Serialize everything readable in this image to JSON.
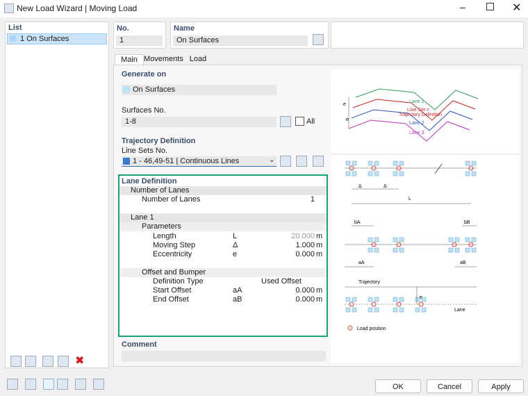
{
  "window": {
    "title": "New Load Wizard | Moving Load"
  },
  "list": {
    "header": "List",
    "items": [
      "1 On Surfaces"
    ]
  },
  "header": {
    "no_label": "No.",
    "no": "1",
    "name_label": "Name",
    "name": "On Surfaces"
  },
  "tabs": [
    "Main",
    "Movements",
    "Load Cases"
  ],
  "generate_on": {
    "title": "Generate on",
    "value": "On Surfaces",
    "surfaces_label": "Surfaces No.",
    "surfaces": "1-8",
    "all": "All"
  },
  "trajectory": {
    "title": "Trajectory Definition",
    "line_sets_label": "Line Sets No.",
    "line_sets": "1 - 46,49-51 | Continuous Lines"
  },
  "lane_definition": {
    "title": "Lane Definition",
    "rows": [
      {
        "name": "Number of Lanes"
      },
      {
        "name": "Number of Lanes",
        "value": "1"
      },
      {
        "name": "Lane 1"
      },
      {
        "name": "Parameters"
      },
      {
        "name": "Length",
        "symbol": "L",
        "value": "20.000",
        "unit": "m"
      },
      {
        "name": "Moving Step",
        "symbol": "Δ",
        "value": "1.000",
        "unit": "m"
      },
      {
        "name": "Eccentricity",
        "symbol": "e",
        "value": "0.000",
        "unit": "m"
      },
      {
        "name": "Offset and Bumper"
      },
      {
        "name": "Definition Type",
        "value": "Used Offset"
      },
      {
        "name": "Start Offset",
        "symbol": "aA",
        "value": "0.000",
        "unit": "m"
      },
      {
        "name": "End Offset",
        "symbol": "aB",
        "value": "0.000",
        "unit": "m"
      }
    ]
  },
  "comment": {
    "title": "Comment"
  },
  "diagram": {
    "lane1": "Lane 1",
    "line_set_1": "Line Set =",
    "line_set_2": "Trajectory Definition",
    "lane2": "Lane 2",
    "lane3": "Lane 3",
    "e": "e",
    "delta": "Δ",
    "length": "L",
    "b_a": "bA",
    "b_b": "bB",
    "a_a": "aA",
    "a_b": "aB",
    "trajectory": "Trajectory",
    "lane": "Lane",
    "load_position": "Load position"
  },
  "buttons": [
    "OK",
    "Cancel",
    "Apply"
  ]
}
